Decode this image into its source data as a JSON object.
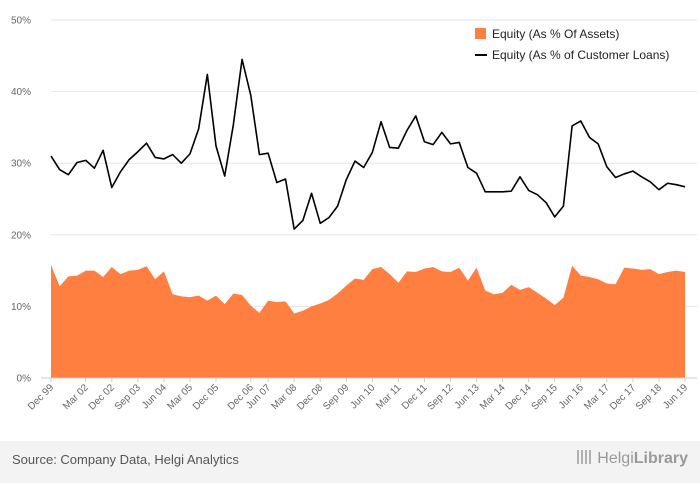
{
  "chart_data": {
    "type": "area",
    "ylim": [
      0,
      50
    ],
    "ytick_labels": [
      "0%",
      "10%",
      "20%",
      "30%",
      "40%",
      "50%"
    ],
    "ytick_values": [
      0,
      10,
      20,
      30,
      40,
      50
    ],
    "x_labels": [
      "Dec 99",
      "Mar 02",
      "Dec 02",
      "Sep 03",
      "Jun 04",
      "Mar 05",
      "Dec 05",
      "Dec 06",
      "Jun 07",
      "Mar 08",
      "Dec 08",
      "Sep 09",
      "Jun 10",
      "Mar 11",
      "Dec 11",
      "Sep 12",
      "Jun 13",
      "Mar 14",
      "Dec 14",
      "Sep 15",
      "Jun 16",
      "Mar 17",
      "Dec 17",
      "Sep 18",
      "Jun 19"
    ],
    "x_label_positions": [
      0,
      4,
      7,
      10,
      13,
      16,
      19,
      23,
      25,
      28,
      31,
      34,
      37,
      40,
      43,
      46,
      49,
      52,
      55,
      58,
      61,
      64,
      67,
      70,
      73
    ],
    "legend_position": "top-right",
    "grid": true,
    "series": [
      {
        "name": "Equity (As % Of Assets)",
        "style": "area",
        "color": "#ff7f41",
        "values": [
          15.8,
          12.8,
          14.2,
          14.3,
          15.0,
          15.0,
          14.1,
          15.5,
          14.5,
          15.0,
          15.1,
          15.6,
          13.8,
          14.9,
          11.7,
          11.4,
          11.3,
          11.5,
          10.8,
          11.5,
          10.3,
          11.8,
          11.6,
          10.1,
          9.1,
          10.8,
          10.6,
          10.7,
          9.0,
          9.4,
          10.0,
          10.4,
          10.9,
          11.8,
          12.9,
          13.9,
          13.7,
          15.2,
          15.5,
          14.5,
          13.3,
          14.9,
          14.8,
          15.3,
          15.5,
          14.9,
          14.8,
          15.4,
          13.6,
          15.4,
          12.2,
          11.7,
          11.9,
          13.0,
          12.3,
          12.7,
          11.9,
          11.1,
          10.2,
          11.2,
          15.7,
          14.3,
          14.1,
          13.8,
          13.2,
          13.1,
          15.4,
          15.3,
          15.1,
          15.2,
          14.5,
          14.8,
          15.0,
          14.8
        ]
      },
      {
        "name": "Equity (As % of Customer Loans)",
        "style": "line",
        "color": "#000000",
        "values": [
          31.0,
          29.1,
          28.4,
          30.1,
          30.4,
          29.3,
          31.8,
          26.6,
          28.8,
          30.5,
          31.6,
          32.8,
          30.8,
          30.6,
          31.2,
          30.0,
          31.3,
          34.8,
          42.4,
          32.4,
          28.2,
          35.4,
          44.5,
          39.5,
          31.2,
          31.4,
          27.3,
          27.8,
          20.8,
          22.0,
          25.8,
          21.6,
          22.4,
          24.0,
          27.7,
          30.3,
          29.4,
          31.5,
          35.8,
          32.2,
          32.1,
          34.6,
          36.6,
          33.0,
          32.6,
          34.3,
          32.7,
          32.9,
          29.4,
          28.6,
          26.0,
          26.0,
          26.0,
          26.1,
          28.1,
          26.2,
          25.6,
          24.5,
          22.5,
          24.0,
          35.2,
          35.9,
          33.6,
          32.7,
          29.5,
          28.0,
          28.5,
          28.9,
          28.1,
          27.4,
          26.3,
          27.2,
          27.0,
          26.7
        ]
      }
    ]
  },
  "footer": {
    "source": "Source: Company Data, Helgi Analytics",
    "brand_light": "Helgi",
    "brand_bold": "Library"
  }
}
